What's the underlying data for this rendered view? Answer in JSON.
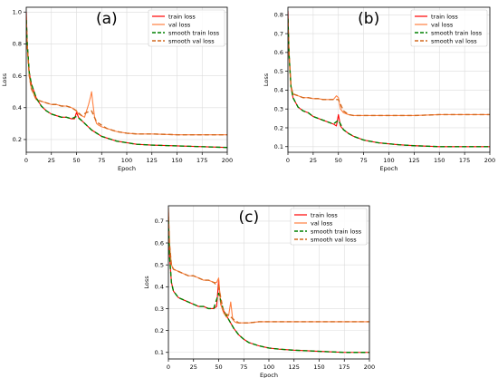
{
  "chart_data": [
    {
      "type": "line",
      "panel_label": "(a)",
      "xlabel": "Epoch",
      "ylabel": "Loss",
      "xlim": [
        0,
        200
      ],
      "ylim": [
        0.12,
        1.03
      ],
      "xticks": [
        0,
        25,
        50,
        75,
        100,
        125,
        150,
        175,
        200
      ],
      "yticks": [
        0.2,
        0.4,
        0.6,
        0.8,
        1.0
      ],
      "ytick_labels": [
        "0.2",
        "0.4",
        "0.6",
        "0.8",
        "1.0"
      ],
      "grid": true,
      "legend_position": "top-right",
      "series": [
        {
          "name": "train loss",
          "color": "#ff0000",
          "style": "solid",
          "x": [
            0,
            1,
            3,
            5,
            10,
            15,
            20,
            25,
            30,
            35,
            40,
            45,
            48,
            50,
            52,
            55,
            60,
            65,
            70,
            75,
            80,
            90,
            100,
            110,
            125,
            150,
            175,
            200
          ],
          "y": [
            1.0,
            0.8,
            0.62,
            0.55,
            0.46,
            0.41,
            0.38,
            0.36,
            0.35,
            0.34,
            0.34,
            0.33,
            0.33,
            0.37,
            0.34,
            0.32,
            0.29,
            0.26,
            0.24,
            0.22,
            0.21,
            0.19,
            0.18,
            0.17,
            0.165,
            0.16,
            0.155,
            0.15
          ]
        },
        {
          "name": "val loss",
          "color": "#ff7f3f",
          "style": "solid",
          "x": [
            0,
            1,
            3,
            5,
            10,
            15,
            20,
            25,
            30,
            35,
            40,
            45,
            48,
            50,
            52,
            55,
            58,
            60,
            62,
            64,
            65,
            66,
            68,
            70,
            72,
            75,
            80,
            90,
            100,
            110,
            125,
            150,
            175,
            200
          ],
          "y": [
            0.98,
            0.8,
            0.6,
            0.52,
            0.45,
            0.44,
            0.43,
            0.42,
            0.42,
            0.41,
            0.41,
            0.4,
            0.39,
            0.38,
            0.36,
            0.35,
            0.34,
            0.38,
            0.42,
            0.47,
            0.5,
            0.44,
            0.34,
            0.3,
            0.29,
            0.28,
            0.27,
            0.25,
            0.24,
            0.235,
            0.235,
            0.23,
            0.23,
            0.23
          ]
        },
        {
          "name": "smooth train loss",
          "color": "#008000",
          "style": "dashed",
          "x": [
            0,
            1,
            3,
            5,
            10,
            15,
            20,
            25,
            30,
            35,
            40,
            45,
            50,
            55,
            60,
            65,
            70,
            75,
            80,
            90,
            100,
            110,
            125,
            150,
            175,
            200
          ],
          "y": [
            0.95,
            0.8,
            0.62,
            0.55,
            0.46,
            0.41,
            0.38,
            0.36,
            0.35,
            0.34,
            0.34,
            0.33,
            0.345,
            0.32,
            0.29,
            0.26,
            0.24,
            0.22,
            0.21,
            0.19,
            0.18,
            0.17,
            0.165,
            0.16,
            0.155,
            0.15
          ]
        },
        {
          "name": "smooth val loss",
          "color": "#d2691e",
          "style": "dashed",
          "x": [
            0,
            1,
            3,
            5,
            10,
            15,
            20,
            25,
            30,
            35,
            40,
            45,
            50,
            55,
            60,
            65,
            70,
            75,
            80,
            90,
            100,
            110,
            125,
            150,
            175,
            200
          ],
          "y": [
            0.93,
            0.78,
            0.6,
            0.52,
            0.45,
            0.44,
            0.43,
            0.42,
            0.42,
            0.41,
            0.41,
            0.4,
            0.38,
            0.35,
            0.37,
            0.38,
            0.31,
            0.29,
            0.27,
            0.25,
            0.24,
            0.235,
            0.235,
            0.23,
            0.23,
            0.23
          ]
        }
      ]
    },
    {
      "type": "line",
      "panel_label": "(b)",
      "xlabel": "Epoch",
      "ylabel": "Loss",
      "xlim": [
        0,
        200
      ],
      "ylim": [
        0.07,
        0.84
      ],
      "xticks": [
        0,
        25,
        50,
        75,
        100,
        125,
        150,
        175,
        200
      ],
      "yticks": [
        0.1,
        0.2,
        0.3,
        0.4,
        0.5,
        0.6,
        0.7,
        0.8
      ],
      "ytick_labels": [
        "0.1",
        "0.2",
        "0.3",
        "0.4",
        "0.5",
        "0.6",
        "0.7",
        "0.8"
      ],
      "grid": true,
      "legend_position": "top-right",
      "series": [
        {
          "name": "train loss",
          "color": "#ff0000",
          "style": "solid",
          "x": [
            0,
            1,
            3,
            5,
            10,
            15,
            20,
            25,
            30,
            35,
            40,
            45,
            48,
            50,
            52,
            55,
            60,
            65,
            70,
            75,
            80,
            90,
            100,
            110,
            125,
            150,
            175,
            200
          ],
          "y": [
            0.82,
            0.6,
            0.42,
            0.36,
            0.31,
            0.29,
            0.28,
            0.26,
            0.25,
            0.24,
            0.23,
            0.22,
            0.21,
            0.27,
            0.21,
            0.19,
            0.17,
            0.155,
            0.145,
            0.135,
            0.13,
            0.12,
            0.115,
            0.11,
            0.105,
            0.1,
            0.1,
            0.1
          ]
        },
        {
          "name": "val loss",
          "color": "#ff7f3f",
          "style": "solid",
          "x": [
            0,
            1,
            3,
            5,
            10,
            15,
            20,
            25,
            30,
            35,
            40,
            45,
            48,
            50,
            52,
            55,
            60,
            65,
            70,
            75,
            80,
            90,
            100,
            110,
            125,
            150,
            175,
            200
          ],
          "y": [
            0.79,
            0.6,
            0.42,
            0.38,
            0.37,
            0.36,
            0.36,
            0.355,
            0.355,
            0.35,
            0.35,
            0.35,
            0.37,
            0.36,
            0.3,
            0.28,
            0.27,
            0.265,
            0.265,
            0.265,
            0.265,
            0.265,
            0.265,
            0.265,
            0.265,
            0.27,
            0.27,
            0.27
          ]
        },
        {
          "name": "smooth train loss",
          "color": "#008000",
          "style": "dashed",
          "x": [
            0,
            1,
            3,
            5,
            10,
            15,
            20,
            25,
            30,
            35,
            40,
            45,
            50,
            55,
            60,
            65,
            70,
            75,
            80,
            90,
            100,
            110,
            125,
            150,
            175,
            200
          ],
          "y": [
            0.78,
            0.6,
            0.42,
            0.36,
            0.31,
            0.29,
            0.28,
            0.26,
            0.25,
            0.24,
            0.23,
            0.22,
            0.24,
            0.19,
            0.17,
            0.155,
            0.145,
            0.135,
            0.13,
            0.12,
            0.115,
            0.11,
            0.105,
            0.1,
            0.1,
            0.1
          ]
        },
        {
          "name": "smooth val loss",
          "color": "#d2691e",
          "style": "dashed",
          "x": [
            0,
            1,
            3,
            5,
            10,
            15,
            20,
            25,
            30,
            35,
            40,
            45,
            50,
            55,
            60,
            65,
            70,
            75,
            80,
            90,
            100,
            110,
            125,
            150,
            175,
            200
          ],
          "y": [
            0.76,
            0.6,
            0.42,
            0.38,
            0.37,
            0.36,
            0.36,
            0.355,
            0.355,
            0.35,
            0.35,
            0.35,
            0.35,
            0.29,
            0.27,
            0.265,
            0.265,
            0.265,
            0.265,
            0.265,
            0.265,
            0.265,
            0.265,
            0.27,
            0.27,
            0.27
          ]
        }
      ]
    },
    {
      "type": "line",
      "panel_label": "(c)",
      "xlabel": "Epoch",
      "ylabel": "Loss",
      "xlim": [
        0,
        200
      ],
      "ylim": [
        0.07,
        0.77
      ],
      "xticks": [
        0,
        25,
        50,
        75,
        100,
        125,
        150,
        175,
        200
      ],
      "yticks": [
        0.1,
        0.2,
        0.3,
        0.4,
        0.5,
        0.6,
        0.7
      ],
      "ytick_labels": [
        "0.1",
        "0.2",
        "0.3",
        "0.4",
        "0.5",
        "0.6",
        "0.7"
      ],
      "grid": true,
      "legend_position": "top-right",
      "series": [
        {
          "name": "train loss",
          "color": "#ff0000",
          "style": "solid",
          "x": [
            0,
            1,
            3,
            5,
            10,
            15,
            20,
            25,
            30,
            35,
            40,
            45,
            48,
            50,
            52,
            55,
            60,
            65,
            70,
            75,
            80,
            90,
            100,
            110,
            125,
            150,
            175,
            200
          ],
          "y": [
            0.74,
            0.55,
            0.42,
            0.38,
            0.35,
            0.34,
            0.33,
            0.32,
            0.31,
            0.31,
            0.3,
            0.3,
            0.31,
            0.43,
            0.32,
            0.29,
            0.25,
            0.21,
            0.18,
            0.16,
            0.145,
            0.13,
            0.12,
            0.115,
            0.11,
            0.105,
            0.1,
            0.1
          ]
        },
        {
          "name": "val loss",
          "color": "#ff7f3f",
          "style": "solid",
          "x": [
            0,
            1,
            3,
            5,
            10,
            15,
            20,
            25,
            30,
            35,
            40,
            45,
            48,
            50,
            52,
            55,
            58,
            60,
            62,
            64,
            66,
            68,
            70,
            75,
            80,
            90,
            100,
            110,
            125,
            150,
            175,
            200
          ],
          "y": [
            0.76,
            0.6,
            0.5,
            0.48,
            0.47,
            0.46,
            0.45,
            0.45,
            0.44,
            0.43,
            0.43,
            0.42,
            0.42,
            0.44,
            0.32,
            0.28,
            0.26,
            0.27,
            0.33,
            0.25,
            0.24,
            0.235,
            0.235,
            0.235,
            0.235,
            0.24,
            0.24,
            0.24,
            0.24,
            0.24,
            0.24,
            0.24
          ]
        },
        {
          "name": "smooth train loss",
          "color": "#008000",
          "style": "dashed",
          "x": [
            0,
            1,
            3,
            5,
            10,
            15,
            20,
            25,
            30,
            35,
            40,
            45,
            50,
            55,
            60,
            65,
            70,
            75,
            80,
            90,
            100,
            110,
            125,
            150,
            175,
            200
          ],
          "y": [
            0.7,
            0.55,
            0.42,
            0.38,
            0.35,
            0.34,
            0.33,
            0.32,
            0.31,
            0.31,
            0.3,
            0.3,
            0.37,
            0.29,
            0.25,
            0.21,
            0.18,
            0.16,
            0.145,
            0.13,
            0.12,
            0.115,
            0.11,
            0.105,
            0.1,
            0.1
          ]
        },
        {
          "name": "smooth val loss",
          "color": "#d2691e",
          "style": "dashed",
          "x": [
            0,
            1,
            3,
            5,
            10,
            15,
            20,
            25,
            30,
            35,
            40,
            45,
            50,
            55,
            60,
            65,
            70,
            75,
            80,
            90,
            100,
            110,
            125,
            150,
            175,
            200
          ],
          "y": [
            0.72,
            0.6,
            0.5,
            0.48,
            0.47,
            0.46,
            0.45,
            0.45,
            0.44,
            0.43,
            0.43,
            0.42,
            0.4,
            0.28,
            0.27,
            0.25,
            0.235,
            0.235,
            0.235,
            0.24,
            0.24,
            0.24,
            0.24,
            0.24,
            0.24,
            0.24
          ]
        }
      ]
    }
  ]
}
